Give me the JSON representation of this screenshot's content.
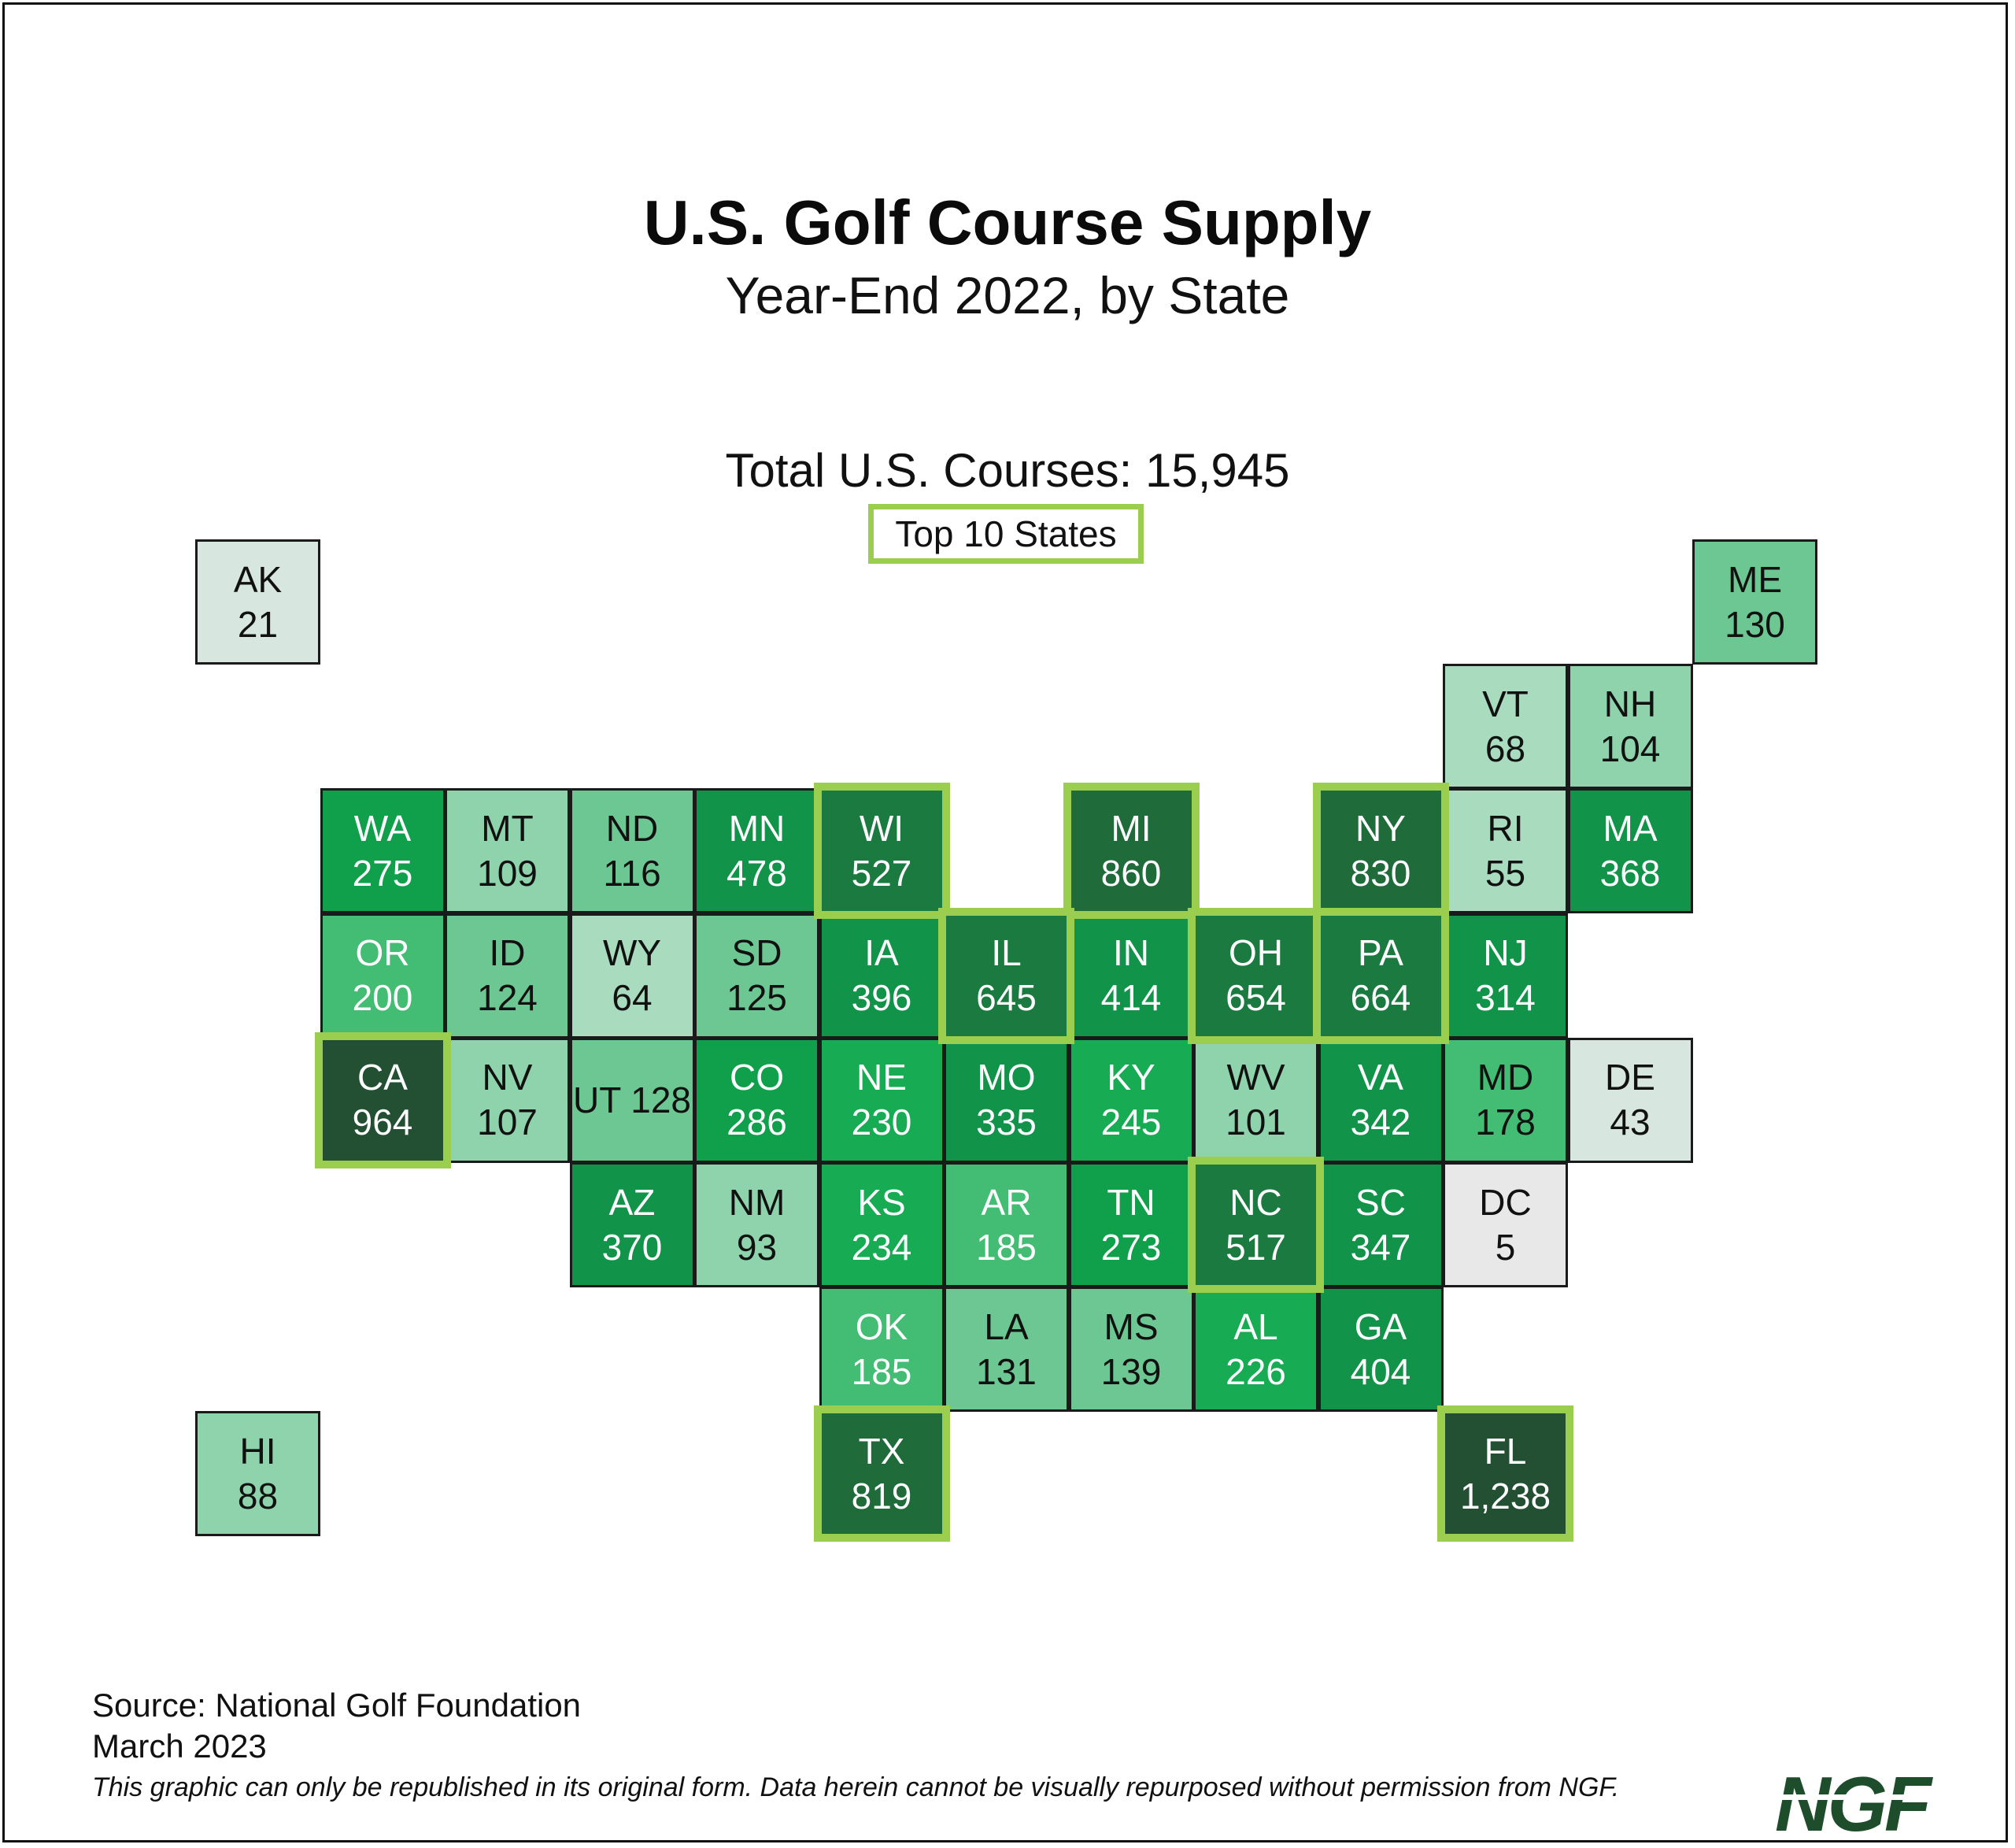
{
  "title": "U.S. Golf Course Supply",
  "subtitle": "Year-End 2022, by State",
  "total_label": "Total U.S. Courses: 15,945",
  "legend_label": "Top 10 States",
  "source": "Source: National Golf Foundation",
  "date": "March 2023",
  "disclaimer": "This graphic can only be republished in its original form. Data herein cannot be visually repurposed without permission from NGF.",
  "logo_text": "NGF",
  "colors": {
    "top10_outline": "#9bcd4f",
    "border": "#1a1a1a",
    "scale": [
      "#e8e8e8",
      "#d7e7df",
      "#a9dbbe",
      "#8ed3ab",
      "#6cc793",
      "#44bd74",
      "#17ac53",
      "#10a04c",
      "#12934a",
      "#1a7a3f",
      "#1f6b3a",
      "#234f32"
    ]
  },
  "chart_data": {
    "type": "tile-map",
    "value_label": "Golf courses",
    "states": [
      {
        "code": "AK",
        "label": "21",
        "value": 21,
        "col": 0,
        "row": 0,
        "top10": false
      },
      {
        "code": "ME",
        "label": "130",
        "value": 130,
        "col": 12,
        "row": 0,
        "top10": false
      },
      {
        "code": "VT",
        "label": "68",
        "value": 68,
        "col": 10,
        "row": 1,
        "top10": false
      },
      {
        "code": "NH",
        "label": "104",
        "value": 104,
        "col": 11,
        "row": 1,
        "top10": false
      },
      {
        "code": "WA",
        "label": "275",
        "value": 275,
        "col": 1,
        "row": 2,
        "top10": false
      },
      {
        "code": "MT",
        "label": "109",
        "value": 109,
        "col": 2,
        "row": 2,
        "top10": false
      },
      {
        "code": "ND",
        "label": "116",
        "value": 116,
        "col": 3,
        "row": 2,
        "top10": false
      },
      {
        "code": "MN",
        "label": "478",
        "value": 478,
        "col": 4,
        "row": 2,
        "top10": false
      },
      {
        "code": "WI",
        "label": "527",
        "value": 527,
        "col": 5,
        "row": 2,
        "top10": true
      },
      {
        "code": "MI",
        "label": "860",
        "value": 860,
        "col": 7,
        "row": 2,
        "top10": true
      },
      {
        "code": "NY",
        "label": "830",
        "value": 830,
        "col": 9,
        "row": 2,
        "top10": true
      },
      {
        "code": "RI",
        "label": "55",
        "value": 55,
        "col": 10,
        "row": 2,
        "top10": false
      },
      {
        "code": "MA",
        "label": "368",
        "value": 368,
        "col": 11,
        "row": 2,
        "top10": false
      },
      {
        "code": "OR",
        "label": "200",
        "value": 200,
        "col": 1,
        "row": 3,
        "top10": false
      },
      {
        "code": "ID",
        "label": "124",
        "value": 124,
        "col": 2,
        "row": 3,
        "top10": false
      },
      {
        "code": "WY",
        "label": "64",
        "value": 64,
        "col": 3,
        "row": 3,
        "top10": false
      },
      {
        "code": "SD",
        "label": "125",
        "value": 125,
        "col": 4,
        "row": 3,
        "top10": false
      },
      {
        "code": "IA",
        "label": "396",
        "value": 396,
        "col": 5,
        "row": 3,
        "top10": false
      },
      {
        "code": "IL",
        "label": "645",
        "value": 645,
        "col": 6,
        "row": 3,
        "top10": true
      },
      {
        "code": "IN",
        "label": "414",
        "value": 414,
        "col": 7,
        "row": 3,
        "top10": false
      },
      {
        "code": "OH",
        "label": "654",
        "value": 654,
        "col": 8,
        "row": 3,
        "top10": true
      },
      {
        "code": "PA",
        "label": "664",
        "value": 664,
        "col": 9,
        "row": 3,
        "top10": true
      },
      {
        "code": "NJ",
        "label": "314",
        "value": 314,
        "col": 10,
        "row": 3,
        "top10": false
      },
      {
        "code": "CA",
        "label": "964",
        "value": 964,
        "col": 1,
        "row": 4,
        "top10": true
      },
      {
        "code": "NV",
        "label": "107",
        "value": 107,
        "col": 2,
        "row": 4,
        "top10": false
      },
      {
        "code": "UT 128",
        "label": "",
        "value": 128,
        "col": 3,
        "row": 4,
        "top10": false
      },
      {
        "code": "CO",
        "label": "286",
        "value": 286,
        "col": 4,
        "row": 4,
        "top10": false
      },
      {
        "code": "NE",
        "label": "230",
        "value": 230,
        "col": 5,
        "row": 4,
        "top10": false
      },
      {
        "code": "MO",
        "label": "335",
        "value": 335,
        "col": 6,
        "row": 4,
        "top10": false
      },
      {
        "code": "KY",
        "label": "245",
        "value": 245,
        "col": 7,
        "row": 4,
        "top10": false
      },
      {
        "code": "WV",
        "label": "101",
        "value": 101,
        "col": 8,
        "row": 4,
        "top10": false
      },
      {
        "code": "VA",
        "label": "342",
        "value": 342,
        "col": 9,
        "row": 4,
        "top10": false
      },
      {
        "code": "MD",
        "label": "178",
        "value": 178,
        "col": 10,
        "row": 4,
        "top10": false
      },
      {
        "code": "DE",
        "label": "43",
        "value": 43,
        "col": 11,
        "row": 4,
        "top10": false
      },
      {
        "code": "AZ",
        "label": "370",
        "value": 370,
        "col": 3,
        "row": 5,
        "top10": false
      },
      {
        "code": "NM",
        "label": "93",
        "value": 93,
        "col": 4,
        "row": 5,
        "top10": false
      },
      {
        "code": "KS",
        "label": "234",
        "value": 234,
        "col": 5,
        "row": 5,
        "top10": false
      },
      {
        "code": "AR",
        "label": "185",
        "value": 185,
        "col": 6,
        "row": 5,
        "top10": false
      },
      {
        "code": "TN",
        "label": "273",
        "value": 273,
        "col": 7,
        "row": 5,
        "top10": false
      },
      {
        "code": "NC",
        "label": "517",
        "value": 517,
        "col": 8,
        "row": 5,
        "top10": true
      },
      {
        "code": "SC",
        "label": "347",
        "value": 347,
        "col": 9,
        "row": 5,
        "top10": false
      },
      {
        "code": "DC",
        "label": "5",
        "value": 5,
        "col": 10,
        "row": 5,
        "top10": false
      },
      {
        "code": "OK",
        "label": "185",
        "value": 185,
        "col": 5,
        "row": 6,
        "top10": false
      },
      {
        "code": "LA",
        "label": "131",
        "value": 131,
        "col": 6,
        "row": 6,
        "top10": false
      },
      {
        "code": "MS",
        "label": "139",
        "value": 139,
        "col": 7,
        "row": 6,
        "top10": false
      },
      {
        "code": "AL",
        "label": "226",
        "value": 226,
        "col": 8,
        "row": 6,
        "top10": false
      },
      {
        "code": "GA",
        "label": "404",
        "value": 404,
        "col": 9,
        "row": 6,
        "top10": false
      },
      {
        "code": "HI",
        "label": "88",
        "value": 88,
        "col": 0,
        "row": 7,
        "top10": false
      },
      {
        "code": "TX",
        "label": "819",
        "value": 819,
        "col": 5,
        "row": 7,
        "top10": true
      },
      {
        "code": "FL",
        "label": "1,238",
        "value": 1238,
        "col": 10,
        "row": 7,
        "top10": true
      }
    ]
  }
}
